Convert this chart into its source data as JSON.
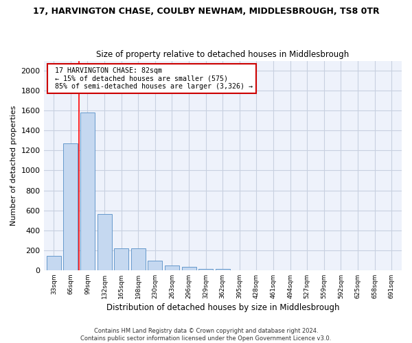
{
  "title": "17, HARVINGTON CHASE, COULBY NEWHAM, MIDDLESBROUGH, TS8 0TR",
  "subtitle": "Size of property relative to detached houses in Middlesbrough",
  "xlabel": "Distribution of detached houses by size in Middlesbrough",
  "ylabel": "Number of detached properties",
  "bar_color": "#c5d8f0",
  "bar_edge_color": "#6699cc",
  "categories": [
    "33sqm",
    "66sqm",
    "99sqm",
    "132sqm",
    "165sqm",
    "198sqm",
    "230sqm",
    "263sqm",
    "296sqm",
    "329sqm",
    "362sqm",
    "395sqm",
    "428sqm",
    "461sqm",
    "494sqm",
    "527sqm",
    "559sqm",
    "592sqm",
    "625sqm",
    "658sqm",
    "691sqm"
  ],
  "values": [
    140,
    1270,
    1580,
    560,
    220,
    220,
    95,
    50,
    30,
    15,
    15,
    0,
    0,
    0,
    0,
    0,
    0,
    0,
    0,
    0,
    0
  ],
  "ylim": [
    0,
    2100
  ],
  "yticks": [
    0,
    200,
    400,
    600,
    800,
    1000,
    1200,
    1400,
    1600,
    1800,
    2000
  ],
  "property_label": "17 HARVINGTON CHASE: 82sqm",
  "pct_smaller": "← 15% of detached houses are smaller (575)",
  "pct_larger": "85% of semi-detached houses are larger (3,326) →",
  "annotation_box_color": "#cc0000",
  "footer1": "Contains HM Land Registry data © Crown copyright and database right 2024.",
  "footer2": "Contains public sector information licensed under the Open Government Licence v3.0.",
  "bg_color": "#eef2fb",
  "grid_color": "#c8d0e0"
}
